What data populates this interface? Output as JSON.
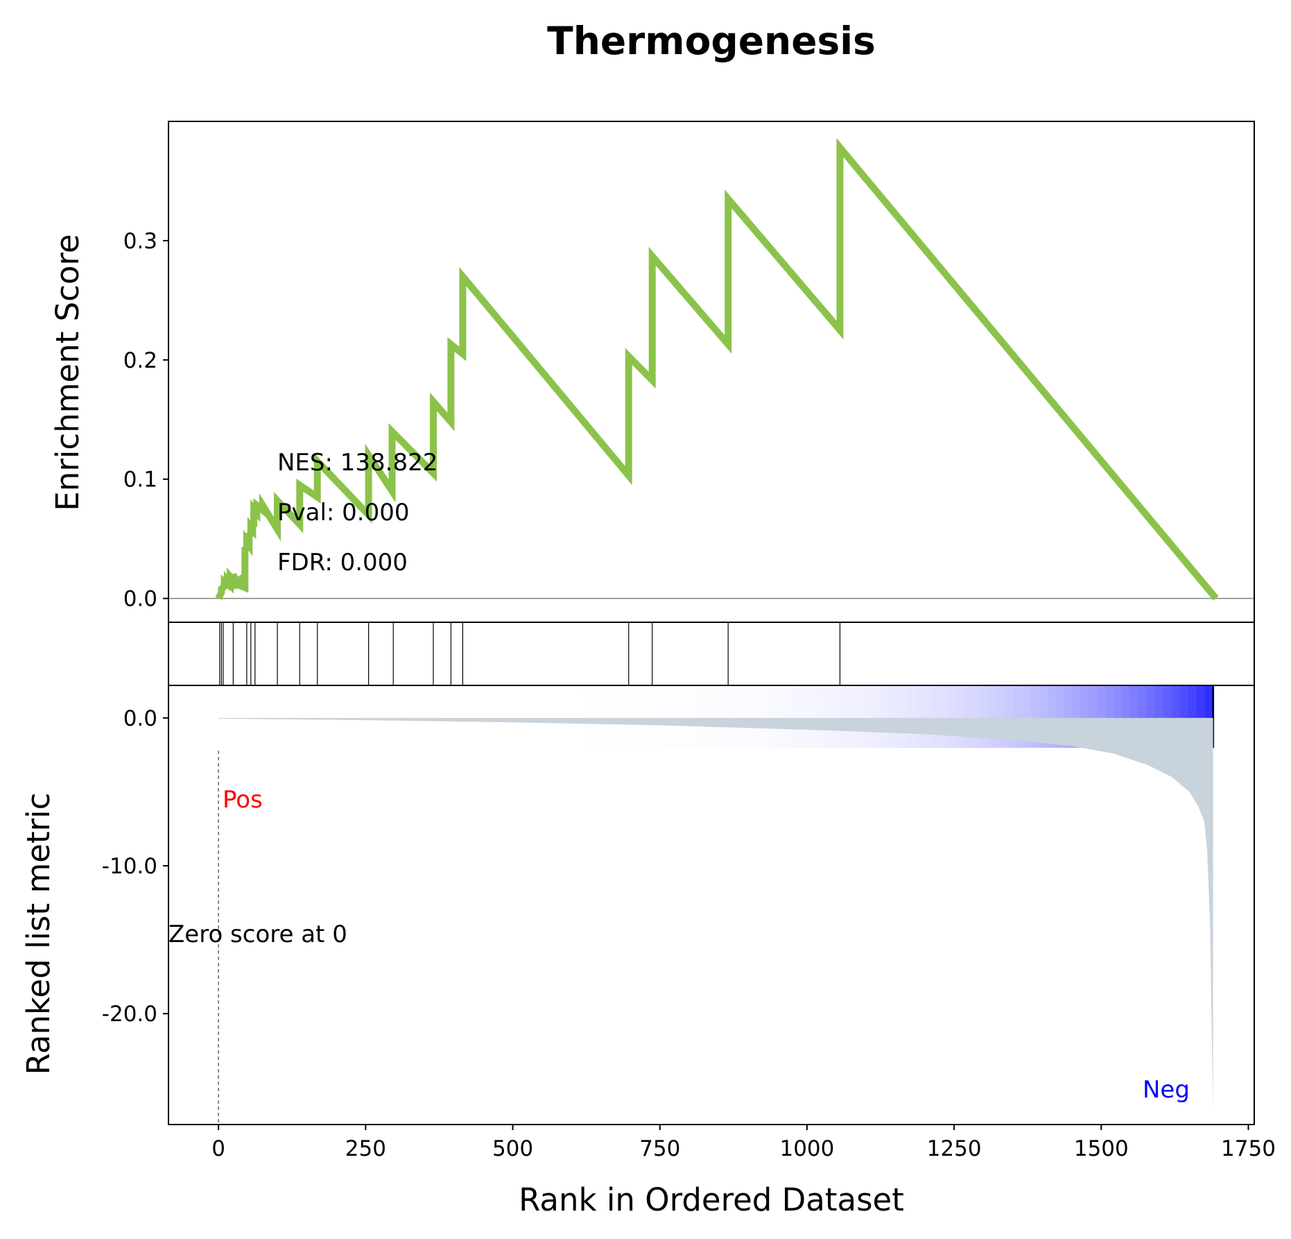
{
  "colors": {
    "es_line": "#8bc34a",
    "metric_fill": "#c9d3dc",
    "pos_label": "#ff0000",
    "neg_label": "#0000ff",
    "heat_low": "#ffffff",
    "heat_high": "#0000ff"
  },
  "chart_data": {
    "type": "line",
    "title": "Thermogenesis",
    "xlabel": "Rank in Ordered Dataset",
    "x_ticks": [
      "0",
      "250",
      "500",
      "750",
      "1000",
      "1250",
      "1500",
      "1750"
    ],
    "xlim": [
      -85,
      1760
    ],
    "grid": false,
    "panels": {
      "enrichment": {
        "ylabel": "Enrichment Score",
        "y_ticks": [
          "0.0",
          "0.1",
          "0.2",
          "0.3"
        ],
        "ylim": [
          -0.02,
          0.4
        ],
        "series": [
          {
            "x": [
              0,
              5,
              5,
              10,
              10,
              15,
              15,
              20,
              20,
              25,
              25,
              30,
              30,
              35,
              35,
              45,
              45,
              48,
              48,
              52,
              52,
              55,
              55,
              58,
              58,
              60,
              60,
              65,
              65,
              75,
              75,
              100,
              100,
              138,
              138,
              168,
              168,
              255,
              255,
              295,
              295,
              365,
              365,
              395,
              395,
              415,
              415,
              697,
              697,
              737,
              737,
              866,
              866,
              1056,
              1056,
              1695
            ],
            "y": [
              0.0,
              0.005,
              0.008,
              0.01,
              0.014,
              0.012,
              0.015,
              0.012,
              0.018,
              0.015,
              0.02,
              0.015,
              0.013,
              0.015,
              0.011,
              0.009,
              0.043,
              0.04,
              0.048,
              0.045,
              0.055,
              0.052,
              0.06,
              0.058,
              0.065,
              0.06,
              0.075,
              0.072,
              0.078,
              0.074,
              0.078,
              0.058,
              0.082,
              0.062,
              0.095,
              0.085,
              0.115,
              0.07,
              0.12,
              0.09,
              0.14,
              0.105,
              0.165,
              0.148,
              0.213,
              0.205,
              0.27,
              0.103,
              0.203,
              0.183,
              0.287,
              0.213,
              0.335,
              0.225,
              0.378,
              0.0
            ]
          }
        ],
        "annotations": [
          "NES: 138.822",
          "Pval: 0.000",
          "FDR: 0.000"
        ]
      },
      "hits": {
        "positions": [
          2,
          5,
          8,
          25,
          48,
          55,
          62,
          100,
          138,
          168,
          255,
          297,
          365,
          395,
          415,
          697,
          737,
          866,
          1056
        ]
      },
      "heatmap": {
        "n_ranks": 1690
      },
      "ranked_metric": {
        "ylabel": "Ranked list metric",
        "y_ticks": [
          "0.0",
          "-10.0",
          "-20.0"
        ],
        "ylim": [
          -27.5,
          2.2
        ],
        "curve_x": [
          0,
          250,
          500,
          750,
          1000,
          1200,
          1350,
          1450,
          1520,
          1580,
          1620,
          1650,
          1665,
          1675,
          1680,
          1685,
          1688,
          1690
        ],
        "curve_y": [
          -0.05,
          -0.15,
          -0.3,
          -0.5,
          -0.8,
          -1.1,
          -1.5,
          -1.9,
          -2.4,
          -3.2,
          -4.0,
          -5.0,
          -6.0,
          -7.0,
          -9.0,
          -14.0,
          -22.0,
          -26.5
        ],
        "zero_label": "Zero score at 0",
        "pos_label": "Pos",
        "neg_label": "Neg"
      }
    }
  }
}
